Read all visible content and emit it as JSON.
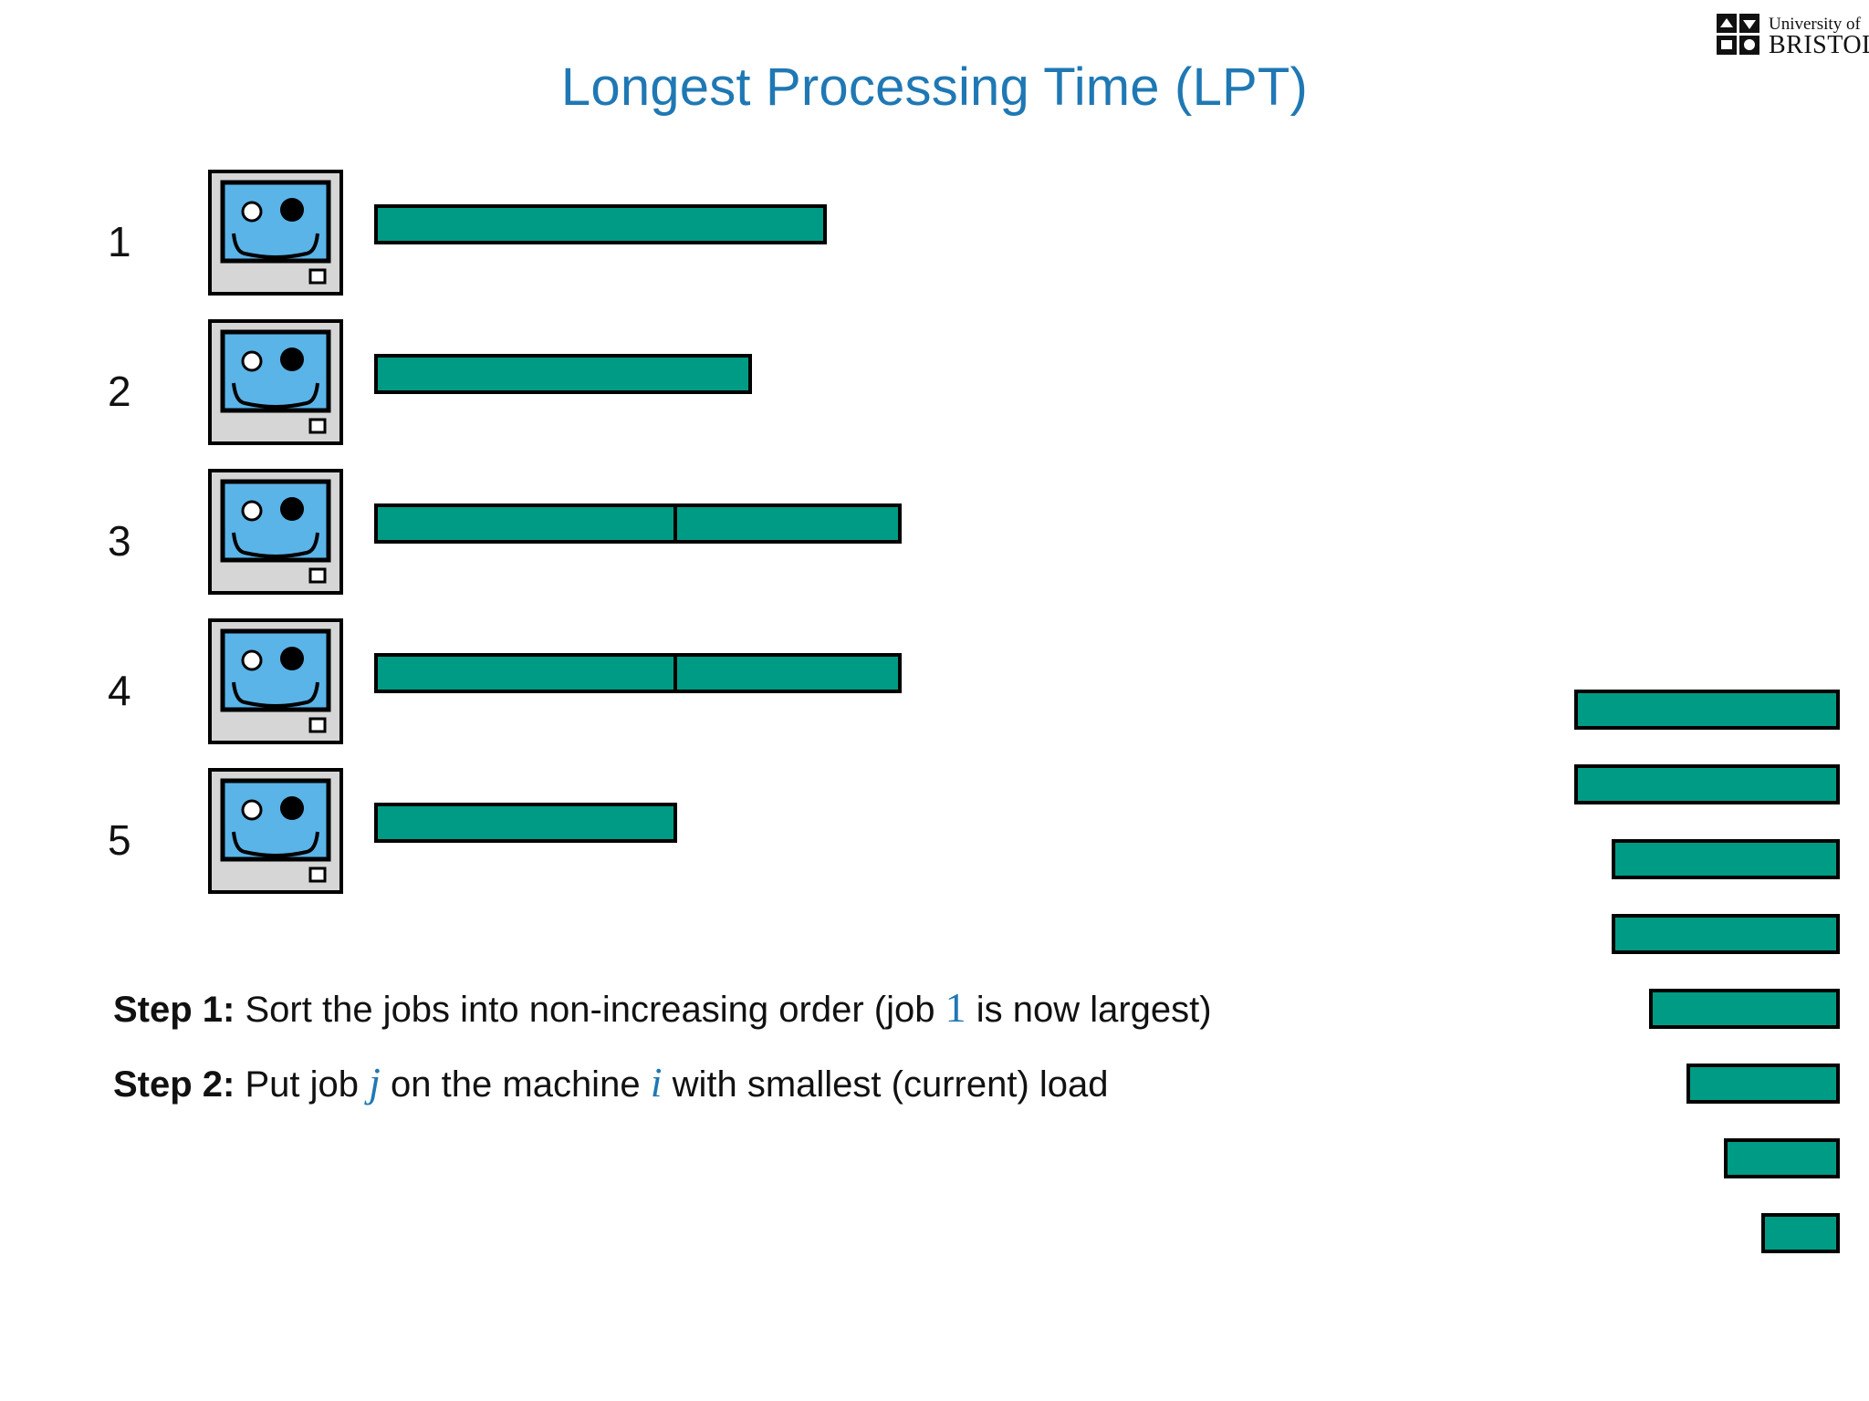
{
  "title": "Longest Processing Time (LPT)",
  "logo": {
    "line1": "University of",
    "line2": "BRISTOL"
  },
  "colors": {
    "accent": "#1f78b4",
    "job_bar": "#009b84",
    "screen": "#5ab4e8",
    "case": "#d6d6d6"
  },
  "machines": [
    {
      "label": "1",
      "icon": "computer-face-icon",
      "jobs": [
        6
      ]
    },
    {
      "label": "2",
      "icon": "computer-face-icon",
      "jobs": [
        5
      ]
    },
    {
      "label": "3",
      "icon": "computer-face-icon",
      "jobs": [
        4,
        3
      ]
    },
    {
      "label": "4",
      "icon": "computer-face-icon",
      "jobs": [
        4,
        3
      ]
    },
    {
      "label": "5",
      "icon": "computer-face-icon",
      "jobs": [
        4
      ]
    }
  ],
  "remaining_jobs": [
    7,
    7,
    6,
    6,
    5,
    4,
    3,
    2
  ],
  "steps": [
    {
      "label": "Step 1:",
      "text_before": "Sort the jobs into non-increasing order (job",
      "math": "1",
      "text_after": "is now largest)"
    },
    {
      "label": "Step 2:",
      "text_before": "Put job",
      "math1": "j",
      "text_middle": "on the machine",
      "math2": "i",
      "text_after": "with smallest (current) load"
    }
  ]
}
